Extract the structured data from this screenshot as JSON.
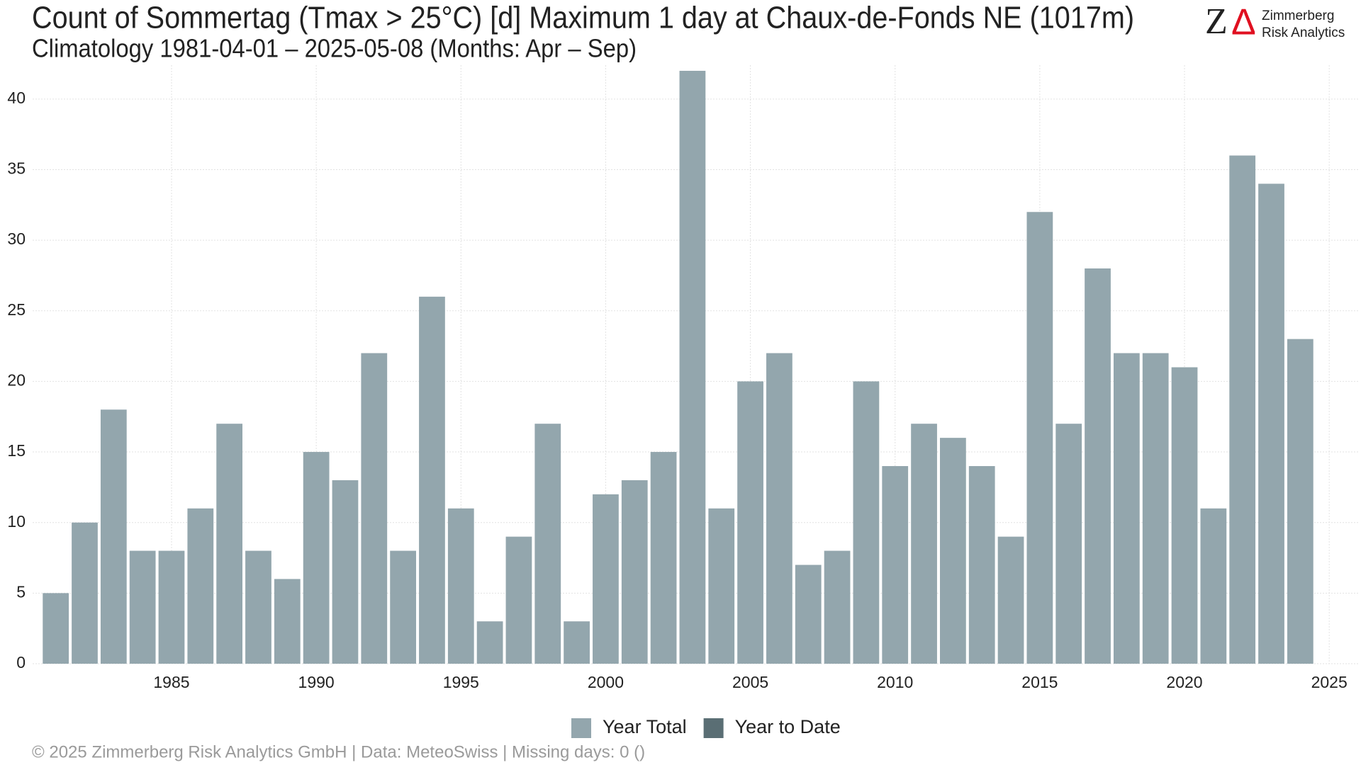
{
  "chart_data": {
    "type": "bar",
    "title": "Count of Sommertag (Tmax > 25°C) [d] Maximum 1 day at Chaux-de-Fonds  NE (1017m)",
    "subtitle": "Climatology 1981-04-01 – 2025-05-08 (Months: Apr – Sep)",
    "x": [
      1981,
      1982,
      1983,
      1984,
      1985,
      1986,
      1987,
      1988,
      1989,
      1990,
      1991,
      1992,
      1993,
      1994,
      1995,
      1996,
      1997,
      1998,
      1999,
      2000,
      2001,
      2002,
      2003,
      2004,
      2005,
      2006,
      2007,
      2008,
      2009,
      2010,
      2011,
      2012,
      2013,
      2014,
      2015,
      2016,
      2017,
      2018,
      2019,
      2020,
      2021,
      2022,
      2023,
      2024
    ],
    "series": [
      {
        "name": "Year Total",
        "color": "#93a6ad",
        "values": [
          5,
          10,
          18,
          8,
          8,
          11,
          17,
          8,
          6,
          15,
          13,
          22,
          8,
          26,
          11,
          3,
          9,
          17,
          3,
          12,
          13,
          15,
          42,
          11,
          20,
          22,
          7,
          8,
          20,
          14,
          17,
          16,
          14,
          9,
          32,
          17,
          28,
          22,
          22,
          21,
          11,
          36,
          34,
          23
        ]
      },
      {
        "name": "Year to Date",
        "color": "#5a6e74",
        "values": [
          null,
          null,
          null,
          null,
          null,
          null,
          null,
          null,
          null,
          null,
          null,
          null,
          null,
          null,
          null,
          null,
          null,
          null,
          null,
          null,
          null,
          null,
          null,
          null,
          null,
          null,
          null,
          null,
          null,
          null,
          null,
          null,
          null,
          null,
          null,
          null,
          null,
          null,
          null,
          null,
          null,
          null,
          null,
          null
        ]
      }
    ],
    "xlim": [
      1980.2,
      2026.0
    ],
    "xticks": [
      1985,
      1990,
      1995,
      2000,
      2005,
      2010,
      2015,
      2020,
      2025
    ],
    "ylim": [
      0,
      42.4
    ],
    "yticks": [
      0,
      5,
      10,
      15,
      20,
      25,
      30,
      35,
      40
    ],
    "grid": true,
    "legend": "bottom",
    "footer": "©  2025 Zimmerberg Risk Analytics GmbH | Data: MeteoSwiss | Missing days: 0 ()",
    "logo": {
      "mark_z": "Z",
      "mark_delta": "Δ",
      "line1": "Zimmerberg",
      "line2": "Risk Analytics"
    }
  }
}
